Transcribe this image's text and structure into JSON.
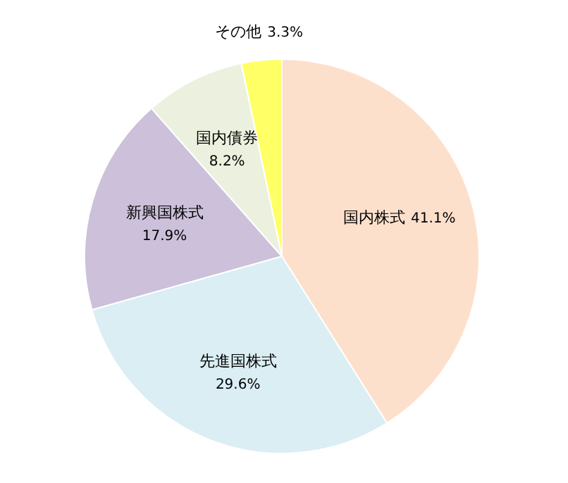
{
  "chart_data": {
    "type": "pie",
    "categories": [
      "国内株式",
      "先進国株式",
      "新興国株式",
      "国内債券",
      "その他"
    ],
    "values": [
      41.1,
      29.6,
      17.9,
      8.2,
      3.3
    ],
    "value_labels": [
      "41.1%",
      "29.6%",
      "17.9%",
      "8.2%",
      "3.3%"
    ],
    "colors": [
      "#fde0cc",
      "#daeef3",
      "#ccc0da",
      "#ebf1de",
      "#ffff66"
    ],
    "legend": false
  }
}
